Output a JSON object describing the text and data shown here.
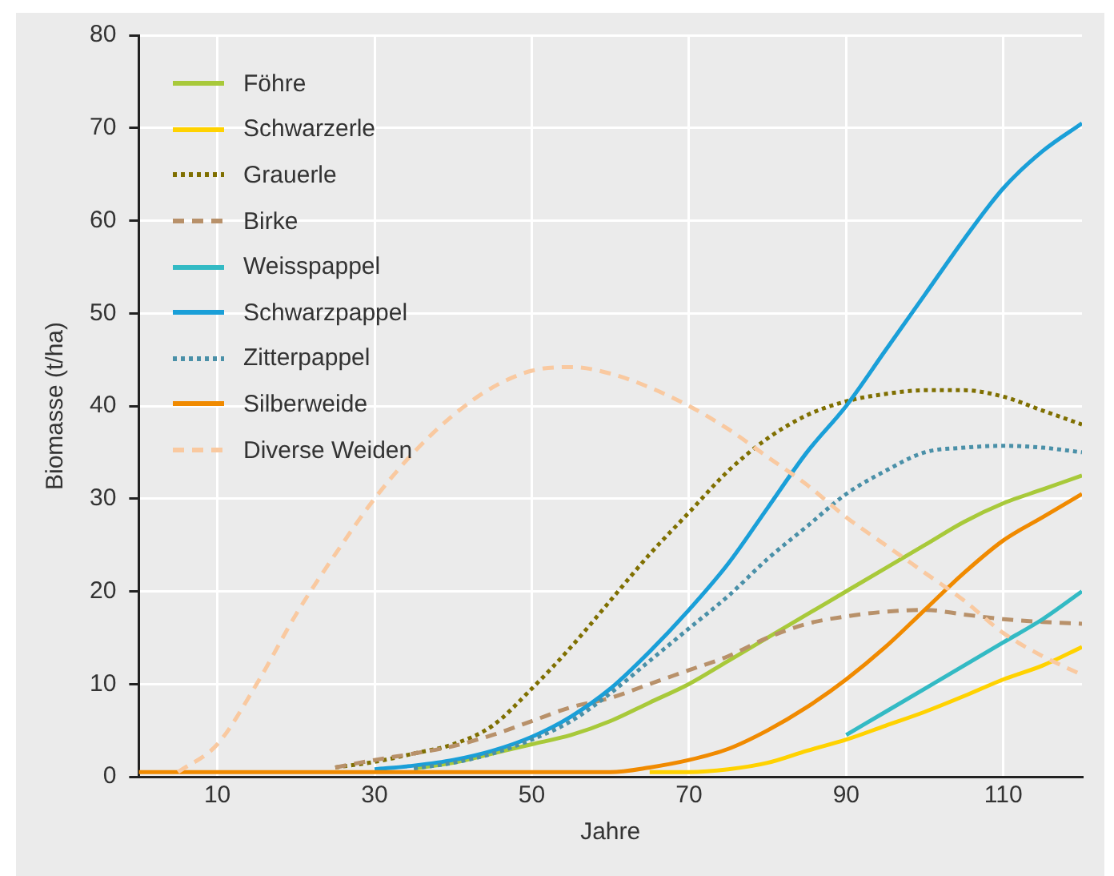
{
  "chart_data": {
    "type": "line",
    "xlabel": "Jahre",
    "ylabel": "Biomasse (t/ha)",
    "xlim": [
      0,
      120
    ],
    "xticks": [
      10,
      30,
      50,
      70,
      90,
      110
    ],
    "ylim": [
      0,
      80
    ],
    "yticks": [
      0,
      10,
      20,
      30,
      40,
      50,
      60,
      70,
      80
    ],
    "grid": true,
    "legend": "top left",
    "marker": "none",
    "x": [
      0,
      5,
      10,
      15,
      20,
      25,
      30,
      35,
      40,
      45,
      50,
      55,
      60,
      65,
      70,
      75,
      80,
      85,
      90,
      95,
      100,
      105,
      110,
      115,
      120
    ],
    "series": [
      {
        "name": "Föhre",
        "color": "#a8c93a",
        "line_style": "solid",
        "values": [
          null,
          null,
          null,
          null,
          null,
          null,
          null,
          0.9,
          1.5,
          2.5,
          3.5,
          4.5,
          6,
          8,
          10,
          12.5,
          15,
          17.5,
          20,
          22.5,
          25,
          27.5,
          29.5,
          31,
          32.5
        ]
      },
      {
        "name": "Schwarzerle",
        "color": "#ffd200",
        "line_style": "solid",
        "values": [
          null,
          null,
          null,
          null,
          null,
          null,
          null,
          null,
          null,
          null,
          null,
          null,
          null,
          0.5,
          0.5,
          0.8,
          1.5,
          2.8,
          4,
          5.5,
          7,
          8.7,
          10.5,
          12,
          14
        ]
      },
      {
        "name": "Grauerle",
        "color": "#7f6f00",
        "line_style": "dotted",
        "values": [
          null,
          null,
          null,
          null,
          null,
          1,
          1.6,
          2.5,
          3.5,
          5.5,
          9.5,
          14,
          19,
          24,
          28.5,
          33,
          36.5,
          39,
          40.5,
          41.3,
          41.7,
          41.7,
          41,
          39.5,
          38
        ]
      },
      {
        "name": "Birke",
        "color": "#b8916a",
        "line_style": "dashed",
        "values": [
          null,
          null,
          null,
          null,
          null,
          1,
          1.8,
          2.5,
          3.3,
          4.5,
          6,
          7.5,
          8.5,
          10,
          11.5,
          13,
          15,
          16.5,
          17.3,
          17.8,
          18,
          17.5,
          17,
          16.7,
          16.5
        ]
      },
      {
        "name": "Weisspappel",
        "color": "#33bac4",
        "line_style": "solid",
        "values": [
          null,
          null,
          null,
          null,
          null,
          null,
          null,
          null,
          null,
          null,
          null,
          null,
          null,
          null,
          null,
          null,
          null,
          null,
          4.5,
          7,
          9.5,
          12,
          14.5,
          17,
          20
        ]
      },
      {
        "name": "Schwarzpappel",
        "color": "#1a9fd8",
        "line_style": "solid",
        "values": [
          null,
          null,
          null,
          null,
          null,
          null,
          0.8,
          1.2,
          1.8,
          2.8,
          4.3,
          6.5,
          9.5,
          13.5,
          18,
          23,
          29,
          35,
          40,
          46,
          52,
          58,
          63.5,
          67.5,
          70.5
        ]
      },
      {
        "name": "Zitterpappel",
        "color": "#4a90a8",
        "line_style": "dotted",
        "values": [
          null,
          null,
          null,
          null,
          null,
          null,
          null,
          0.9,
          1.5,
          2.5,
          4,
          6,
          9,
          12.5,
          16,
          19.5,
          23.5,
          27,
          30.5,
          33,
          35,
          35.5,
          35.7,
          35.5,
          35
        ]
      },
      {
        "name": "Silberweide",
        "color": "#f08a00",
        "line_style": "solid",
        "values": [
          0.5,
          0.5,
          0.5,
          0.5,
          0.5,
          0.5,
          0.5,
          0.5,
          0.5,
          0.5,
          0.5,
          0.5,
          0.5,
          1,
          1.8,
          3,
          5,
          7.5,
          10.5,
          14,
          18,
          22,
          25.5,
          28,
          30.5
        ]
      },
      {
        "name": "Diverse Weiden",
        "color": "#f9c9a0",
        "line_style": "dashed",
        "values": [
          null,
          0.5,
          3.5,
          10,
          17.5,
          24,
          30,
          35,
          39,
          42,
          43.8,
          44.2,
          43.5,
          42,
          40,
          37.5,
          34.5,
          31.5,
          28,
          25,
          22,
          19,
          15.5,
          13,
          11
        ]
      }
    ]
  }
}
